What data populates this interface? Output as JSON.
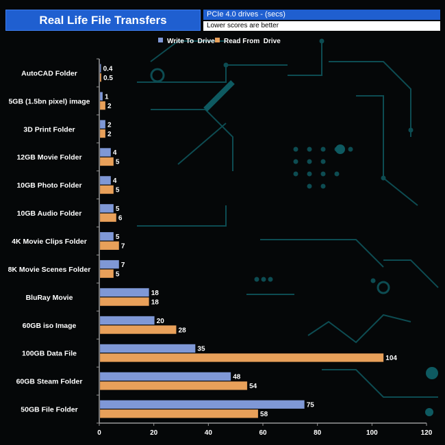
{
  "header": {
    "title": "Real Life File Transfers",
    "subtitle": "PCIe 4.0 drives - (secs)",
    "note": "Lower scores are better"
  },
  "colors": {
    "write": "#7f98d6",
    "read": "#e8a05a",
    "header_blue": "#1f5fd0",
    "circuit": "#0d4c52"
  },
  "chart_data": {
    "type": "bar",
    "orientation": "horizontal",
    "title": "Real Life File Transfers",
    "categories": [
      "AutoCAD Folder",
      "5GB (1.5bn pixel) image",
      "3D Print Folder",
      "12GB Movie Folder",
      "10GB Photo Folder",
      "10GB Audio Folder",
      "4K Movie Clips Folder",
      "8K Movie Scenes Folder",
      "BluRay Movie",
      "60GB iso Image",
      "100GB Data File",
      "60GB Steam Folder",
      "50GB File Folder"
    ],
    "series": [
      {
        "name": "Write To  Drive",
        "values": [
          0.4,
          1,
          2,
          4,
          4,
          5,
          5,
          7,
          18,
          20,
          35,
          48,
          75
        ]
      },
      {
        "name": "Read From  Drive",
        "values": [
          0.5,
          2,
          2,
          5,
          5,
          6,
          7,
          5,
          18,
          28,
          104,
          54,
          58
        ]
      }
    ],
    "xlim": [
      0,
      120
    ],
    "xticks": [
      0,
      20,
      40,
      60,
      80,
      100,
      120
    ],
    "legend": "top-center"
  }
}
